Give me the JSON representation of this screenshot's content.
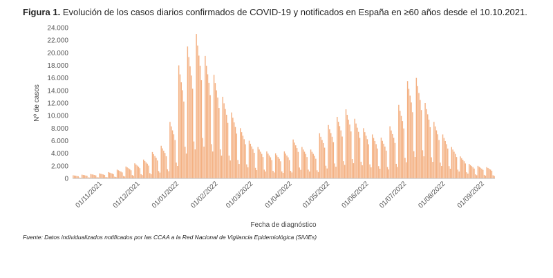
{
  "figure": {
    "label": "Figura 1.",
    "title": "Evolución de los casos diarios confirmados de COVID-19 y notificados en España en ≥60 años desde el 10.10.2021."
  },
  "source": "Fuente: Datos individualizados notificados por las CCAA a la Red Nacional de Vigilancia Epidemiológica (SiViEs)",
  "colors": {
    "bars": "#f4b183",
    "axis": "#bfbfbf"
  },
  "chart_data": {
    "type": "bar",
    "xlabel": "Fecha de diagnóstico",
    "ylabel": "Nº de casos",
    "ylim": [
      0,
      24000
    ],
    "yticks": [
      0,
      2000,
      4000,
      6000,
      8000,
      10000,
      12000,
      14000,
      16000,
      18000,
      20000,
      22000,
      24000
    ],
    "ytick_labels": [
      "0",
      "2.000",
      "4.000",
      "6.000",
      "8.000",
      "10.000",
      "12.000",
      "14.000",
      "16.000",
      "18.000",
      "20.000",
      "22.000",
      "24.000"
    ],
    "xtick_labels": [
      "01/11/2021",
      "01/12/2021",
      "01/01/2022",
      "01/02/2022",
      "01/03/2022",
      "01/04/2022",
      "01/05/2022",
      "01/06/2022",
      "01/07/2022",
      "01/08/2022",
      "01/09/2022"
    ],
    "x_start": "2021-10-10",
    "x_end": "2022-09-10",
    "weekly_profile": [
      1.0,
      0.92,
      0.85,
      0.78,
      0.68,
      0.28,
      0.22
    ],
    "weekly_peaks": [
      {
        "week_of": "2021-10-10",
        "value": 500
      },
      {
        "week_of": "2021-10-17",
        "value": 600
      },
      {
        "week_of": "2021-10-24",
        "value": 700
      },
      {
        "week_of": "2021-10-31",
        "value": 800
      },
      {
        "week_of": "2021-11-07",
        "value": 1000
      },
      {
        "week_of": "2021-11-14",
        "value": 1400
      },
      {
        "week_of": "2021-11-21",
        "value": 1900
      },
      {
        "week_of": "2021-11-28",
        "value": 2400
      },
      {
        "week_of": "2021-12-05",
        "value": 3000
      },
      {
        "week_of": "2021-12-12",
        "value": 4200
      },
      {
        "week_of": "2021-12-19",
        "value": 5200
      },
      {
        "week_of": "2021-12-26",
        "value": 9000
      },
      {
        "week_of": "2022-01-02",
        "value": 18000
      },
      {
        "week_of": "2022-01-09",
        "value": 21000
      },
      {
        "week_of": "2022-01-16",
        "value": 23000
      },
      {
        "week_of": "2022-01-23",
        "value": 19500
      },
      {
        "week_of": "2022-01-30",
        "value": 16500
      },
      {
        "week_of": "2022-02-06",
        "value": 13000
      },
      {
        "week_of": "2022-02-13",
        "value": 10500
      },
      {
        "week_of": "2022-02-20",
        "value": 8000
      },
      {
        "week_of": "2022-02-27",
        "value": 6000
      },
      {
        "week_of": "2022-03-06",
        "value": 5000
      },
      {
        "week_of": "2022-03-13",
        "value": 4300
      },
      {
        "week_of": "2022-03-20",
        "value": 4000
      },
      {
        "week_of": "2022-03-27",
        "value": 4300
      },
      {
        "week_of": "2022-04-03",
        "value": 6200
      },
      {
        "week_of": "2022-04-10",
        "value": 5000
      },
      {
        "week_of": "2022-04-17",
        "value": 4600
      },
      {
        "week_of": "2022-04-24",
        "value": 7200
      },
      {
        "week_of": "2022-05-01",
        "value": 8500
      },
      {
        "week_of": "2022-05-08",
        "value": 9800
      },
      {
        "week_of": "2022-05-15",
        "value": 11000
      },
      {
        "week_of": "2022-05-22",
        "value": 9500
      },
      {
        "week_of": "2022-05-29",
        "value": 8000
      },
      {
        "week_of": "2022-06-05",
        "value": 7000
      },
      {
        "week_of": "2022-06-12",
        "value": 6500
      },
      {
        "week_of": "2022-06-19",
        "value": 8300
      },
      {
        "week_of": "2022-06-26",
        "value": 11700
      },
      {
        "week_of": "2022-07-03",
        "value": 15500
      },
      {
        "week_of": "2022-07-10",
        "value": 16000
      },
      {
        "week_of": "2022-07-17",
        "value": 12000
      },
      {
        "week_of": "2022-07-24",
        "value": 9000
      },
      {
        "week_of": "2022-07-31",
        "value": 7000
      },
      {
        "week_of": "2022-08-07",
        "value": 5000
      },
      {
        "week_of": "2022-08-14",
        "value": 3500
      },
      {
        "week_of": "2022-08-21",
        "value": 2300
      },
      {
        "week_of": "2022-08-28",
        "value": 2000
      },
      {
        "week_of": "2022-09-04",
        "value": 1800
      }
    ]
  }
}
